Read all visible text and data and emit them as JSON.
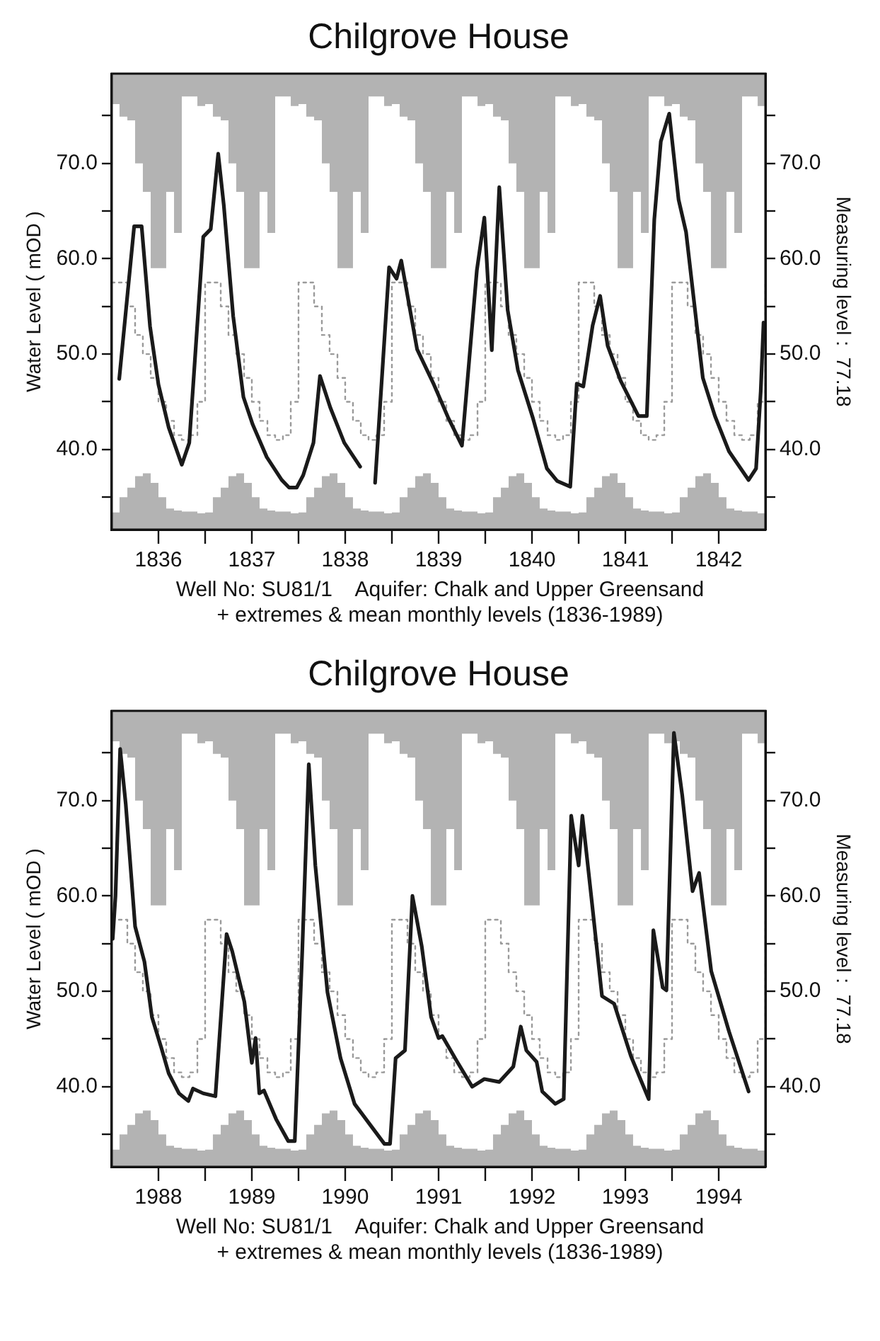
{
  "chart_data": [
    {
      "type": "line",
      "title": "Chilgrove House",
      "ylabel": "Water Level ( mOD )",
      "y2label": "Measuring level :  77.18",
      "annotations": [
        "Well No: SU81/1    Aquifer: Chalk and Upper Greensand",
        "+ extremes & mean monthly levels (1836-1989)"
      ],
      "marker": "none",
      "xlim": [
        1836,
        1843
      ],
      "xticks": [
        {
          "value": 1836.5,
          "label": "1836"
        },
        {
          "value": 1837,
          "label": null
        },
        {
          "value": 1837.5,
          "label": "1837"
        },
        {
          "value": 1838,
          "label": null
        },
        {
          "value": 1838.5,
          "label": "1838"
        },
        {
          "value": 1839,
          "label": null
        },
        {
          "value": 1839.5,
          "label": "1839"
        },
        {
          "value": 1840,
          "label": null
        },
        {
          "value": 1840.5,
          "label": "1840"
        },
        {
          "value": 1841,
          "label": null
        },
        {
          "value": 1841.5,
          "label": "1841"
        },
        {
          "value": 1842,
          "label": null
        },
        {
          "value": 1842.5,
          "label": "1842"
        }
      ],
      "ylim": [
        31.6,
        79.4
      ],
      "yticks": [
        {
          "value": 35,
          "label": null
        },
        {
          "value": 40,
          "label": "40.0"
        },
        {
          "value": 45,
          "label": null
        },
        {
          "value": 50,
          "label": "50.0"
        },
        {
          "value": 55,
          "label": null
        },
        {
          "value": 60,
          "label": "60.0"
        },
        {
          "value": 65,
          "label": null
        },
        {
          "value": 70,
          "label": "70.0"
        },
        {
          "value": 75,
          "label": null
        }
      ],
      "y2lim": [
        31.6,
        79.4
      ],
      "y2ticks": [
        {
          "value": 35,
          "label": null
        },
        {
          "value": 40,
          "label": "40.0"
        },
        {
          "value": 45,
          "label": null
        },
        {
          "value": 50,
          "label": "50.0"
        },
        {
          "value": 55,
          "label": null
        },
        {
          "value": 60,
          "label": "60.0"
        },
        {
          "value": 65,
          "label": null
        },
        {
          "value": 70,
          "label": "70.0"
        },
        {
          "value": 75,
          "label": null
        }
      ],
      "x": [
        1836,
        1836.083,
        1836.167,
        1836.25,
        1836.333,
        1836.417,
        1836.5,
        1836.583,
        1836.667,
        1836.75,
        1836.833,
        1836.917,
        1837,
        1837.083,
        1837.167,
        1837.25,
        1837.333,
        1837.417,
        1837.5,
        1837.583,
        1837.667,
        1837.75,
        1837.833,
        1837.917,
        1838,
        1838.083,
        1838.167,
        1838.25,
        1838.333,
        1838.417,
        1838.5,
        1838.583,
        1838.667,
        1838.75,
        1838.833,
        1838.917,
        1839,
        1839.083,
        1839.167,
        1839.25,
        1839.333,
        1839.417,
        1839.5,
        1839.583,
        1839.667,
        1839.75,
        1839.833,
        1839.917,
        1840,
        1840.083,
        1840.167,
        1840.25,
        1840.333,
        1840.417,
        1840.5,
        1840.583,
        1840.667,
        1840.75,
        1840.833,
        1840.917,
        1841,
        1841.083,
        1841.167,
        1841.25,
        1841.333,
        1841.417,
        1841.5,
        1841.583,
        1841.667,
        1841.75,
        1841.833,
        1841.917,
        1842,
        1842.083,
        1842.167,
        1842.25,
        1842.333,
        1842.417,
        1842.5,
        1842.583,
        1842.667,
        1842.75,
        1842.833,
        1842.917,
        1843
      ],
      "series": [
        {
          "type": "step",
          "color": "#9a9a9a",
          "line_style": "dotted",
          "values": [
            57.5,
            57.5,
            55,
            52,
            50,
            47.5,
            45,
            43,
            41.5,
            41,
            41.5,
            45,
            57.5,
            57.5,
            55,
            52,
            50,
            47.5,
            45,
            43,
            41.5,
            41,
            41.5,
            45,
            57.5,
            57.5,
            55,
            52,
            50,
            47.5,
            45,
            43,
            41.5,
            41,
            41.5,
            45,
            57.5,
            57.5,
            55,
            52,
            50,
            47.5,
            45,
            43,
            41.5,
            41,
            41.5,
            45,
            57.5,
            57.5,
            55,
            52,
            50,
            47.5,
            45,
            43,
            41.5,
            41,
            41.5,
            45,
            57.5,
            57.5,
            55,
            52,
            50,
            47.5,
            45,
            43,
            41.5,
            41,
            41.5,
            45,
            57.5,
            57.5,
            55,
            52,
            50,
            47.5,
            45,
            43,
            41.5,
            41,
            41.5,
            45,
            57.5
          ],
          "upper": [
            76.2,
            74.9,
            74.5,
            70,
            67,
            59,
            59,
            67,
            62.7,
            77,
            77,
            76,
            76.2,
            74.9,
            74.5,
            70,
            67,
            59,
            59,
            67,
            62.7,
            77,
            77,
            76,
            76.2,
            74.9,
            74.5,
            70,
            67,
            59,
            59,
            67,
            62.7,
            77,
            77,
            76,
            76.2,
            74.9,
            74.5,
            70,
            67,
            59,
            59,
            67,
            62.7,
            77,
            77,
            76,
            76.2,
            74.9,
            74.5,
            70,
            67,
            59,
            59,
            67,
            62.7,
            77,
            77,
            76,
            76.2,
            74.9,
            74.5,
            70,
            67,
            59,
            59,
            67,
            62.7,
            77,
            77,
            76,
            76.2,
            74.9,
            74.5,
            70,
            67,
            59,
            59,
            67,
            62.7,
            77,
            77,
            76,
            76.2
          ],
          "lower": [
            33.4,
            35,
            36,
            37.2,
            37.5,
            36.5,
            35,
            33.8,
            33.6,
            33.5,
            33.5,
            33.3,
            33.4,
            35,
            36,
            37.2,
            37.5,
            36.5,
            35,
            33.8,
            33.6,
            33.5,
            33.5,
            33.3,
            33.4,
            35,
            36,
            37.2,
            37.5,
            36.5,
            35,
            33.8,
            33.6,
            33.5,
            33.5,
            33.3,
            33.4,
            35,
            36,
            37.2,
            37.5,
            36.5,
            35,
            33.8,
            33.6,
            33.5,
            33.5,
            33.3,
            33.4,
            35,
            36,
            37.2,
            37.5,
            36.5,
            35,
            33.8,
            33.6,
            33.5,
            33.5,
            33.3,
            33.4,
            35,
            36,
            37.2,
            37.5,
            36.5,
            35,
            33.8,
            33.6,
            33.5,
            33.5,
            33.3,
            33.4,
            35,
            36,
            37.2,
            37.5,
            36.5,
            35,
            33.8,
            33.6,
            33.5,
            33.5,
            33.3,
            33.4
          ]
        },
        {
          "color": "#1a1a1a",
          "x": [
            1836.08,
            1836.24,
            1836.32,
            1836.41,
            1836.5,
            1836.61,
            1836.75,
            1836.83,
            1836.98,
            1837.06,
            1837.14,
            1837.2,
            1837.3,
            1837.41,
            1837.51,
            1837.66,
            1837.82,
            1837.9,
            1837.98,
            1838.05,
            1838.16,
            1838.23,
            1838.34,
            1838.49,
            1838.66,
            1838.74,
            1838.82,
            1838.97,
            1839.05,
            1839.1,
            1839.27,
            1839.45,
            1839.6,
            1839.75,
            1839.91,
            1839.99,
            1840.07,
            1840.15,
            1840.24,
            1840.35,
            1840.51,
            1840.66,
            1840.77,
            1840.91,
            1840.98,
            1841.05,
            1841.15,
            1841.23,
            1841.31,
            1841.45,
            1841.64,
            1841.73,
            1841.81,
            1841.88,
            1841.97,
            1842.07,
            1842.15,
            1842.33,
            1842.46,
            1842.61,
            1842.82,
            1842.9,
            1842.95,
            1842.98
          ],
          "values": [
            47.4,
            63.4,
            63.4,
            52.9,
            46.8,
            42.3,
            38.4,
            40.7,
            62.3,
            63.1,
            71,
            65.6,
            54,
            45.5,
            42.6,
            39.2,
            36.8,
            36,
            36,
            37.3,
            40.7,
            47.7,
            44.4,
            40.7,
            38.2,
            null,
            36.5,
            59.1,
            57.9,
            59.8,
            50.5,
            46.8,
            43.4,
            40.4,
            58.8,
            64.3,
            50.4,
            67.5,
            54.6,
            48.3,
            43.3,
            38,
            36.7,
            36.1,
            46.9,
            46.6,
            53,
            56.1,
            50.9,
            47.2,
            43.5,
            43.5,
            64.1,
            72.3,
            75.2,
            66.2,
            62.8,
            47.5,
            43.5,
            39.8,
            36.8,
            38,
            46.1,
            53.3
          ]
        }
      ]
    },
    {
      "type": "line",
      "title": "Chilgrove House",
      "ylabel": "Water Level ( mOD )",
      "y2label": "Measuring level :  77.18",
      "annotations": [
        "Well No: SU81/1    Aquifer: Chalk and Upper Greensand",
        "+ extremes & mean monthly levels (1836-1989)"
      ],
      "marker": "none",
      "xlim": [
        1988,
        1995
      ],
      "xticks": [
        {
          "value": 1988.5,
          "label": "1988"
        },
        {
          "value": 1989,
          "label": null
        },
        {
          "value": 1989.5,
          "label": "1989"
        },
        {
          "value": 1990,
          "label": null
        },
        {
          "value": 1990.5,
          "label": "1990"
        },
        {
          "value": 1991,
          "label": null
        },
        {
          "value": 1991.5,
          "label": "1991"
        },
        {
          "value": 1992,
          "label": null
        },
        {
          "value": 1992.5,
          "label": "1992"
        },
        {
          "value": 1993,
          "label": null
        },
        {
          "value": 1993.5,
          "label": "1993"
        },
        {
          "value": 1994,
          "label": null
        },
        {
          "value": 1994.5,
          "label": "1994"
        }
      ],
      "ylim": [
        31.6,
        79.4
      ],
      "yticks": [
        {
          "value": 35,
          "label": null
        },
        {
          "value": 40,
          "label": "40.0"
        },
        {
          "value": 45,
          "label": null
        },
        {
          "value": 50,
          "label": "50.0"
        },
        {
          "value": 55,
          "label": null
        },
        {
          "value": 60,
          "label": "60.0"
        },
        {
          "value": 65,
          "label": null
        },
        {
          "value": 70,
          "label": "70.0"
        },
        {
          "value": 75,
          "label": null
        }
      ],
      "y2lim": [
        31.6,
        79.4
      ],
      "y2ticks": [
        {
          "value": 35,
          "label": null
        },
        {
          "value": 40,
          "label": "40.0"
        },
        {
          "value": 45,
          "label": null
        },
        {
          "value": 50,
          "label": "50.0"
        },
        {
          "value": 55,
          "label": null
        },
        {
          "value": 60,
          "label": "60.0"
        },
        {
          "value": 65,
          "label": null
        },
        {
          "value": 70,
          "label": "70.0"
        },
        {
          "value": 75,
          "label": null
        }
      ],
      "x": [
        1988,
        1988.083,
        1988.167,
        1988.25,
        1988.333,
        1988.417,
        1988.5,
        1988.583,
        1988.667,
        1988.75,
        1988.833,
        1988.917,
        1989,
        1989.083,
        1989.167,
        1989.25,
        1989.333,
        1989.417,
        1989.5,
        1989.583,
        1989.667,
        1989.75,
        1989.833,
        1989.917,
        1990,
        1990.083,
        1990.167,
        1990.25,
        1990.333,
        1990.417,
        1990.5,
        1990.583,
        1990.667,
        1990.75,
        1990.833,
        1990.917,
        1991,
        1991.083,
        1991.167,
        1991.25,
        1991.333,
        1991.417,
        1991.5,
        1991.583,
        1991.667,
        1991.75,
        1991.833,
        1991.917,
        1992,
        1992.083,
        1992.167,
        1992.25,
        1992.333,
        1992.417,
        1992.5,
        1992.583,
        1992.667,
        1992.75,
        1992.833,
        1992.917,
        1993,
        1993.083,
        1993.167,
        1993.25,
        1993.333,
        1993.417,
        1993.5,
        1993.583,
        1993.667,
        1993.75,
        1993.833,
        1993.917,
        1994,
        1994.083,
        1994.167,
        1994.25,
        1994.333,
        1994.417,
        1994.5,
        1994.583,
        1994.667,
        1994.75,
        1994.833,
        1994.917,
        1995
      ],
      "series": [
        {
          "type": "step",
          "color": "#9a9a9a",
          "line_style": "dotted",
          "values": [
            57.5,
            57.5,
            55,
            52,
            50,
            47.5,
            45,
            43,
            41.5,
            41,
            41.5,
            45,
            57.5,
            57.5,
            55,
            52,
            50,
            47.5,
            45,
            43,
            41.5,
            41,
            41.5,
            45,
            57.5,
            57.5,
            55,
            52,
            50,
            47.5,
            45,
            43,
            41.5,
            41,
            41.5,
            45,
            57.5,
            57.5,
            55,
            52,
            50,
            47.5,
            45,
            43,
            41.5,
            41,
            41.5,
            45,
            57.5,
            57.5,
            55,
            52,
            50,
            47.5,
            45,
            43,
            41.5,
            41,
            41.5,
            45,
            57.5,
            57.5,
            55,
            52,
            50,
            47.5,
            45,
            43,
            41.5,
            41,
            41.5,
            45,
            57.5,
            57.5,
            55,
            52,
            50,
            47.5,
            45,
            43,
            41.5,
            41,
            41.5,
            45,
            57.5
          ],
          "upper": [
            76.2,
            74.9,
            74.5,
            70,
            67,
            59,
            59,
            67,
            62.7,
            77,
            77,
            76,
            76.2,
            74.9,
            74.5,
            70,
            67,
            59,
            59,
            67,
            62.7,
            77,
            77,
            76,
            76.2,
            74.9,
            74.5,
            70,
            67,
            59,
            59,
            67,
            62.7,
            77,
            77,
            76,
            76.2,
            74.9,
            74.5,
            70,
            67,
            59,
            59,
            67,
            62.7,
            77,
            77,
            76,
            76.2,
            74.9,
            74.5,
            70,
            67,
            59,
            59,
            67,
            62.7,
            77,
            77,
            76,
            76.2,
            74.9,
            74.5,
            70,
            67,
            59,
            59,
            67,
            62.7,
            77,
            77,
            76,
            76.2,
            74.9,
            74.5,
            70,
            67,
            59,
            59,
            67,
            62.7,
            77,
            77,
            76,
            76.2
          ],
          "lower": [
            33.4,
            35,
            36,
            37.2,
            37.5,
            36.5,
            35,
            33.8,
            33.6,
            33.5,
            33.5,
            33.3,
            33.4,
            35,
            36,
            37.2,
            37.5,
            36.5,
            35,
            33.8,
            33.6,
            33.5,
            33.5,
            33.3,
            33.4,
            35,
            36,
            37.2,
            37.5,
            36.5,
            35,
            33.8,
            33.6,
            33.5,
            33.5,
            33.3,
            33.4,
            35,
            36,
            37.2,
            37.5,
            36.5,
            35,
            33.8,
            33.6,
            33.5,
            33.5,
            33.3,
            33.4,
            35,
            36,
            37.2,
            37.5,
            36.5,
            35,
            33.8,
            33.6,
            33.5,
            33.5,
            33.3,
            33.4,
            35,
            36,
            37.2,
            37.5,
            36.5,
            35,
            33.8,
            33.6,
            33.5,
            33.5,
            33.3,
            33.4,
            35,
            36,
            37.2,
            37.5,
            36.5,
            35,
            33.8,
            33.6,
            33.5,
            33.5,
            33.3,
            33.4
          ]
        },
        {
          "color": "#1a1a1a",
          "x": [
            1988.01,
            1988.04,
            1988.09,
            1988.15,
            1988.25,
            1988.35,
            1988.43,
            1988.53,
            1988.61,
            1988.72,
            1988.82,
            1988.87,
            1988.98,
            1989.11,
            1989.23,
            1989.29,
            1989.42,
            1989.5,
            1989.54,
            1989.58,
            1989.63,
            1989.76,
            1989.89,
            1989.96,
            1990.04,
            1990.11,
            1990.18,
            1990.31,
            1990.45,
            1990.6,
            1990.76,
            1990.92,
            1990.98,
            1991.04,
            1991.14,
            1991.22,
            1991.32,
            1991.42,
            1991.5,
            1991.54,
            1991.7,
            1991.86,
            1991.99,
            1992.15,
            1992.3,
            1992.38,
            1992.44,
            1992.55,
            1992.61,
            1992.75,
            1992.84,
            1992.92,
            1993,
            1993.04,
            1993.14,
            1993.25,
            1993.38,
            1993.56,
            1993.75,
            1993.8,
            1993.9,
            1993.94,
            1994.02,
            1994.11,
            1994.22,
            1994.29,
            1994.42,
            1994.61,
            1994.82
          ],
          "values": [
            55.5,
            60,
            75.4,
            69.6,
            56.8,
            53.1,
            47.3,
            44.1,
            41.4,
            39.3,
            38.5,
            39.8,
            39.3,
            39,
            56,
            54.2,
            48.9,
            42.5,
            45.1,
            39.3,
            39.6,
            36.6,
            34.3,
            34.3,
            54.2,
            73.8,
            63.2,
            49.9,
            43,
            38.2,
            36.1,
            34,
            34,
            43,
            43.8,
            60,
            54.7,
            47.3,
            45.1,
            45.3,
            42.6,
            40,
            40.8,
            40.5,
            42.1,
            46.3,
            43.8,
            42.6,
            39.5,
            38.2,
            38.7,
            68.4,
            63.2,
            68.4,
            59.5,
            49.5,
            48.7,
            43.2,
            38.7,
            56.4,
            50.4,
            50.1,
            77.1,
            70.5,
            60.5,
            62.4,
            52.1,
            45.8,
            39.5
          ]
        }
      ]
    }
  ]
}
